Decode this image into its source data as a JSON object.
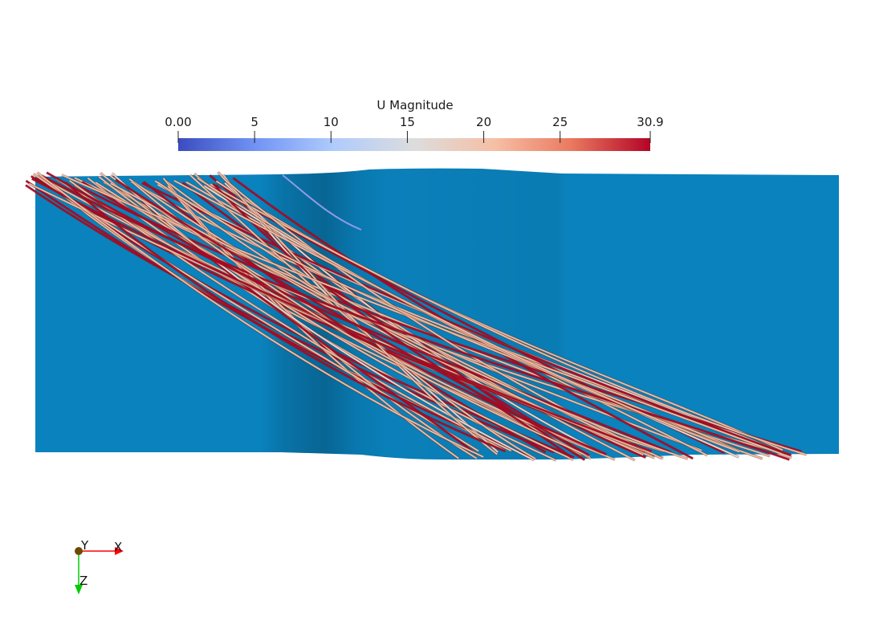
{
  "scalar_bar": {
    "title": "U Magnitude",
    "range": [
      0.0,
      30.9
    ],
    "ticks": [
      {
        "value": 0,
        "label": "0.00"
      },
      {
        "value": 5,
        "label": "5"
      },
      {
        "value": 10,
        "label": "10"
      },
      {
        "value": 15,
        "label": "15"
      },
      {
        "value": 20,
        "label": "20"
      },
      {
        "value": 25,
        "label": "25"
      },
      {
        "value": 30.9,
        "label": "30.9"
      }
    ],
    "colormap": [
      "#3b4cc0",
      "#7396f5",
      "#b0cbfc",
      "#dcdddd",
      "#f6bfa6",
      "#ea7b60",
      "#b40426"
    ]
  },
  "scene": {
    "surface_color": "#0a82bd",
    "streamline_count": 60,
    "streamline_color_low": "#f0b9a0",
    "streamline_color_high": "#b40426"
  },
  "orientation_axes": {
    "x_label": "X",
    "y_label": "Y",
    "z_label": "Z",
    "x_color": "#ff0000",
    "y_color": "#6b4a00",
    "z_color": "#00cc00"
  }
}
